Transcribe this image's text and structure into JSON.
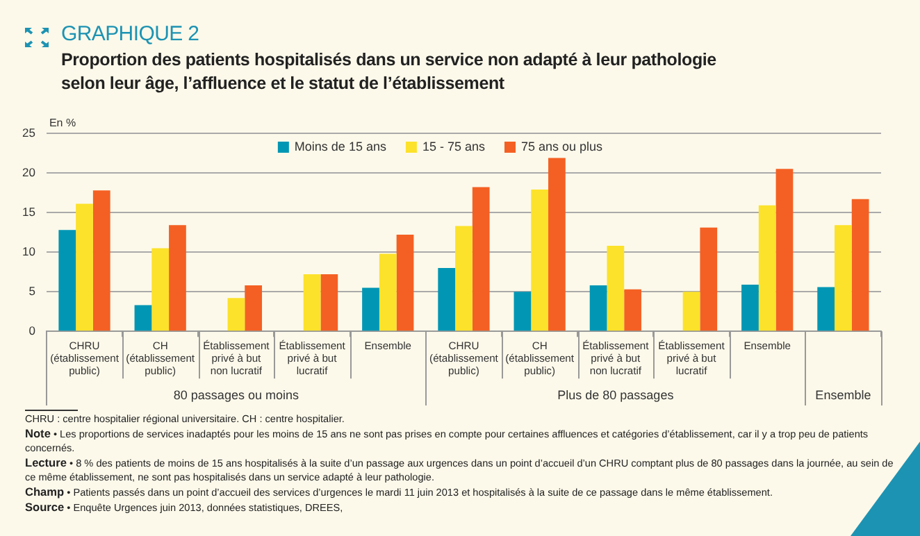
{
  "chart_data": {
    "type": "bar",
    "title": "GRAPHIQUE 2",
    "subtitle": "Proportion des patients hospitalisés dans un service non adapté à leur pathologie\nselon leur âge, l’affluence et le statut de l’établissement",
    "ylabel": "En %",
    "categories": [
      "CHRU\n(établissement\npublic)",
      "CH\n(établissement\npublic)",
      "Établissement\nprivé à but\nnon lucratif",
      "Établissement\nprivé à but\nlucratif",
      "Ensemble",
      "CHRU\n(établissement\npublic)",
      "CH\n(établissement\npublic)",
      "Établissement\nprivé à but\nnon lucratif",
      "Établissement\nprivé à but\nlucratif",
      "Ensemble",
      null
    ],
    "series": [
      {
        "name": "Moins de 15 ans",
        "color": "#0096b4",
        "values": [
          12.8,
          3.3,
          null,
          null,
          5.5,
          8,
          5,
          5.8,
          null,
          5.9,
          5.6
        ]
      },
      {
        "name": "15 - 75 ans",
        "color": "#fce22a",
        "values": [
          16.1,
          10.5,
          4.2,
          7.2,
          9.8,
          13.3,
          17.9,
          10.8,
          5,
          15.9,
          13.4
        ]
      },
      {
        "name": "75 ans ou plus",
        "color": "#f46023",
        "values": [
          17.8,
          13.4,
          5.8,
          7.2,
          12.2,
          18.2,
          21.9,
          5.3,
          13.1,
          20.5,
          16.7
        ]
      }
    ],
    "ylim": [
      0,
      25
    ],
    "yticks": [
      0,
      5,
      10,
      15,
      20,
      25
    ],
    "grid": "y",
    "legend": "top",
    "annotations": [
      "80 passages ou moins",
      "Plus de 80 passages",
      "Ensemble",
      "CHRU : centre hospitalier régional universitaire. CH : centre hospitalier.",
      "Note • Les proportions de services inadaptés pour les moins de 15 ans ne sont pas prises en compte pour certaines affluences et catégories d’établissement, car il y a trop peu de patients concernés.",
      "Lecture • 8 % des patients de moins de 15 ans hospitalisés à la suite d’un passage aux urgences dans un point d’accueil d’un CHRU comptant plus de 80 passages dans la journée, au sein de ce même établissement, ne sont pas hospitalisés dans un service adapté à leur pathologie.",
      "Champ • Patients passés dans un point d’accueil des services d’urgences le mardi 11 juin 2013 et hospitalisés à la suite de ce passage dans le même établissement.",
      "Source • Enquête Urgences juin 2013, données statistiques, DREES,"
    ]
  }
}
